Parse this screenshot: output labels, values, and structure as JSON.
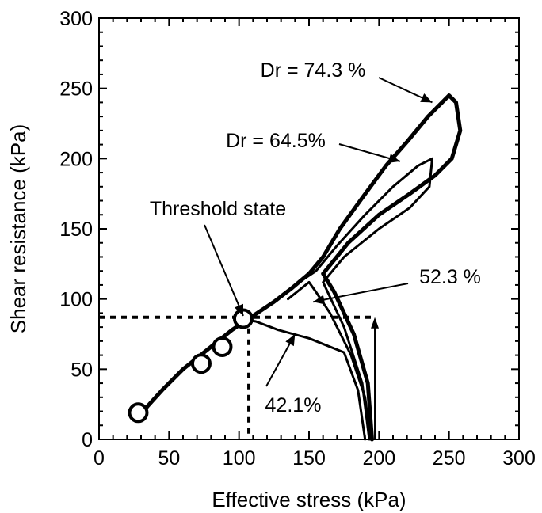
{
  "chart_data": {
    "type": "line",
    "title": "",
    "xlabel": "Effective stress (kPa)",
    "ylabel": "Shear resistance (kPa)",
    "xlim": [
      0,
      300
    ],
    "ylim": [
      0,
      300
    ],
    "xticks": [
      0,
      50,
      100,
      150,
      200,
      250,
      300
    ],
    "yticks": [
      0,
      50,
      100,
      150,
      200,
      250,
      300
    ],
    "grid": false,
    "legend": "none",
    "series": [
      {
        "name": "Dr = 74.3 %",
        "points": [
          [
            195,
            0
          ],
          [
            192,
            40
          ],
          [
            182,
            75
          ],
          [
            168,
            105
          ],
          [
            160,
            118
          ],
          [
            178,
            140
          ],
          [
            200,
            160
          ],
          [
            222,
            175
          ],
          [
            240,
            188
          ],
          [
            252,
            200
          ],
          [
            258,
            220
          ],
          [
            255,
            240
          ],
          [
            250,
            245
          ],
          [
            235,
            230
          ],
          [
            220,
            212
          ],
          [
            205,
            195
          ],
          [
            188,
            172
          ],
          [
            172,
            150
          ],
          [
            160,
            130
          ],
          [
            150,
            118
          ],
          [
            138,
            108
          ],
          [
            125,
            98
          ],
          [
            110,
            88
          ],
          [
            95,
            78
          ],
          [
            80,
            66
          ],
          [
            60,
            50
          ],
          [
            45,
            35
          ],
          [
            35,
            24
          ],
          [
            30,
            18
          ]
        ]
      },
      {
        "name": "Dr = 64.5%",
        "points": [
          [
            193,
            0
          ],
          [
            188,
            40
          ],
          [
            175,
            80
          ],
          [
            160,
            112
          ],
          [
            175,
            130
          ],
          [
            200,
            150
          ],
          [
            222,
            165
          ],
          [
            236,
            180
          ],
          [
            238,
            200
          ],
          [
            228,
            195
          ],
          [
            210,
            180
          ],
          [
            190,
            160
          ],
          [
            170,
            138
          ],
          [
            155,
            120
          ],
          [
            140,
            110
          ]
        ]
      },
      {
        "name": "52.3 %",
        "points": [
          [
            194,
            0
          ],
          [
            190,
            30
          ],
          [
            180,
            60
          ],
          [
            165,
            90
          ],
          [
            155,
            105
          ],
          [
            150,
            112
          ],
          [
            145,
            108
          ],
          [
            135,
            100
          ]
        ]
      },
      {
        "name": "42.1%",
        "points": [
          [
            190,
            0
          ],
          [
            185,
            35
          ],
          [
            175,
            62
          ],
          [
            150,
            72
          ],
          [
            128,
            78
          ],
          [
            112,
            84
          ],
          [
            100,
            86
          ]
        ]
      }
    ],
    "markers": [
      [
        28,
        19
      ],
      [
        73,
        54
      ],
      [
        88,
        66
      ],
      [
        103,
        86
      ]
    ],
    "reference_lines": {
      "threshold_stress_x": 107,
      "threshold_resistance_y": 87
    },
    "annotations": [
      {
        "text": "Dr = 74.3 %",
        "target": [
          238,
          240
        ]
      },
      {
        "text": "Dr = 64.5%",
        "target": [
          215,
          198
        ]
      },
      {
        "text": "Threshold state",
        "target": [
          103,
          88
        ]
      },
      {
        "text": "52.3 %",
        "target": [
          153,
          98
        ]
      },
      {
        "text": "42.1%",
        "target": [
          140,
          75
        ]
      }
    ]
  }
}
